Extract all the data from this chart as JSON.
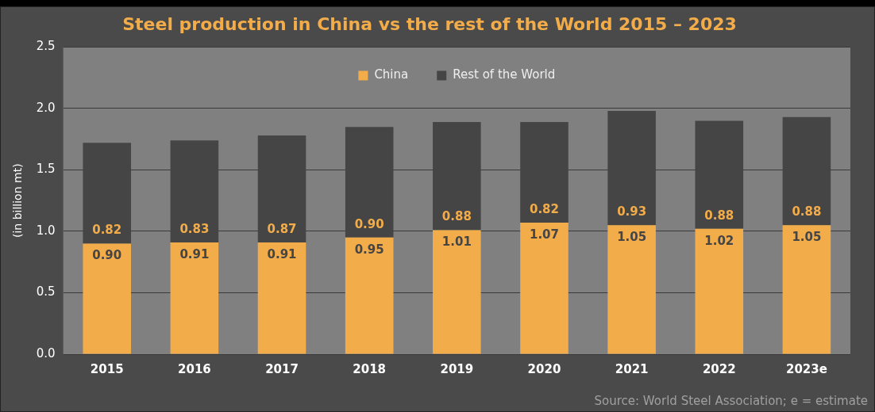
{
  "chart_data": {
    "type": "bar",
    "title": "Steel production in China vs the rest of the World 2015 – 2023",
    "ylabel": "(in billion mt)",
    "categories": [
      "2015",
      "2016",
      "2017",
      "2018",
      "2019",
      "2020",
      "2021",
      "2022",
      "2023e"
    ],
    "series": [
      {
        "name": "China",
        "color": "#f2ac4a",
        "values": [
          0.9,
          0.91,
          0.91,
          0.95,
          1.01,
          1.07,
          1.05,
          1.02,
          1.05
        ],
        "value_labels": [
          "0.90",
          "0.91",
          "0.91",
          "0.95",
          "1.01",
          "1.07",
          "1.05",
          "1.02",
          "1.05"
        ]
      },
      {
        "name": "Rest of the World",
        "color": "#454545",
        "values": [
          0.82,
          0.83,
          0.87,
          0.9,
          0.88,
          0.82,
          0.93,
          0.88,
          0.88
        ],
        "value_labels": [
          "0.82",
          "0.83",
          "0.87",
          "0.90",
          "0.88",
          "0.82",
          "0.93",
          "0.88",
          "0.88"
        ]
      }
    ],
    "stacked": true,
    "ylim": [
      0,
      2.5
    ],
    "yticks": [
      {
        "value": 0,
        "label": "0.0"
      },
      0.5,
      {
        "value": 1,
        "label": "1.0"
      },
      1.5,
      {
        "value": 2,
        "label": "2.0"
      },
      2.5
    ],
    "grid": "y",
    "legend": "top",
    "annotations": [
      "Source: World Steel Association; e = estimate"
    ]
  }
}
